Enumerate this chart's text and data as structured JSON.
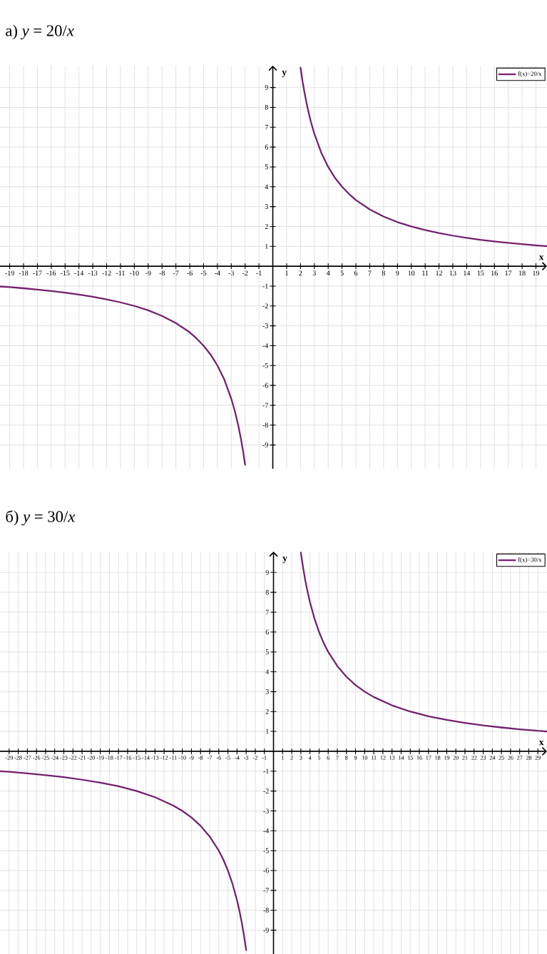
{
  "chart_data": [
    {
      "type": "line",
      "title": "а) *y* = 20/*x*",
      "xlabel": "x",
      "ylabel": "y",
      "xlim": [
        -19.7,
        19.8
      ],
      "ylim": [
        -10.2,
        10.1
      ],
      "xticks": [
        -19,
        -18,
        -17,
        -16,
        -15,
        -14,
        -13,
        -12,
        -11,
        -10,
        -9,
        -8,
        -7,
        -6,
        -5,
        -4,
        -3,
        -2,
        -1,
        1,
        2,
        3,
        4,
        5,
        6,
        7,
        8,
        9,
        10,
        11,
        12,
        13,
        14,
        15,
        16,
        17,
        18,
        19
      ],
      "yticks": [
        -9,
        -8,
        -7,
        -6,
        -5,
        -4,
        -3,
        -2,
        -1,
        1,
        2,
        3,
        4,
        5,
        6,
        7,
        8,
        9
      ],
      "grid": true,
      "legend": "top right",
      "series": [
        {
          "name": "f(x)=20/x",
          "color": "#74206f",
          "x": [
            -19.7,
            -19,
            -18,
            -17,
            -16,
            -15,
            -14,
            -13,
            -12,
            -11,
            -10,
            -9,
            -8,
            -7,
            -6,
            -5.5,
            -5,
            -4.5,
            -4,
            -3.5,
            -3,
            -2.75,
            -2.5,
            -2.3,
            -2.15,
            -2,
            0,
            2,
            2.15,
            2.3,
            2.5,
            2.75,
            3,
            3.5,
            4,
            4.5,
            5,
            5.5,
            6,
            7,
            8,
            9,
            10,
            11,
            12,
            13,
            14,
            15,
            16,
            17,
            18,
            19,
            19.8
          ],
          "values": [
            -1.02,
            -1.05,
            -1.11,
            -1.18,
            -1.25,
            -1.33,
            -1.43,
            -1.54,
            -1.67,
            -1.82,
            -2,
            -2.22,
            -2.5,
            -2.86,
            -3.33,
            -3.64,
            -4,
            -4.44,
            -5,
            -5.71,
            -6.67,
            -7.27,
            -8,
            -8.7,
            -9.3,
            -10,
            null,
            10,
            9.3,
            8.7,
            8,
            7.27,
            6.67,
            5.71,
            5,
            4.44,
            4,
            3.64,
            3.33,
            2.86,
            2.5,
            2.22,
            2,
            1.82,
            1.67,
            1.54,
            1.43,
            1.33,
            1.25,
            1.18,
            1.11,
            1.05,
            1.01
          ]
        }
      ]
    },
    {
      "type": "line",
      "title": "б) *y* = 30/*x*",
      "xlabel": "x",
      "ylabel": "y",
      "xlim": [
        -30,
        30
      ],
      "ylim": [
        -10.2,
        10.05
      ],
      "xticks": [
        -29,
        -28,
        -27,
        -26,
        -25,
        -24,
        -23,
        -22,
        -21,
        -20,
        -19,
        -18,
        -17,
        -16,
        -15,
        -14,
        -13,
        -12,
        -11,
        -10,
        -9,
        -8,
        -7,
        -6,
        -5,
        -4,
        -3,
        -2,
        -1,
        1,
        2,
        3,
        4,
        5,
        6,
        7,
        8,
        9,
        10,
        11,
        12,
        13,
        14,
        15,
        16,
        17,
        18,
        19,
        20,
        21,
        22,
        23,
        24,
        25,
        26,
        27,
        28,
        29
      ],
      "yticks": [
        -9,
        -8,
        -7,
        -6,
        -5,
        -4,
        -3,
        -2,
        -1,
        1,
        2,
        3,
        4,
        5,
        6,
        7,
        8,
        9
      ],
      "grid": true,
      "legend": "top right",
      "series": [
        {
          "name": "f(x)=30/x",
          "color": "#74206f",
          "x": [
            -30,
            -29,
            -27,
            -25,
            -23,
            -21,
            -19,
            -17,
            -15,
            -13,
            -11,
            -10,
            -9,
            -8,
            -7,
            -6,
            -5.5,
            -5,
            -4.5,
            -4,
            -3.75,
            -3.5,
            -3.25,
            -3,
            0,
            3,
            3.25,
            3.5,
            3.75,
            4,
            4.5,
            5,
            5.5,
            6,
            7,
            8,
            9,
            10,
            11,
            13,
            15,
            17,
            19,
            21,
            23,
            25,
            27,
            29,
            30
          ],
          "values": [
            -1,
            -1.03,
            -1.11,
            -1.2,
            -1.3,
            -1.43,
            -1.58,
            -1.76,
            -2,
            -2.31,
            -2.73,
            -3,
            -3.33,
            -3.75,
            -4.29,
            -5,
            -5.45,
            -6,
            -6.67,
            -7.5,
            -8,
            -8.57,
            -9.23,
            -10,
            null,
            10,
            9.23,
            8.57,
            8,
            7.5,
            6.67,
            6,
            5.45,
            5,
            4.29,
            3.75,
            3.33,
            3,
            2.73,
            2.31,
            2,
            1.76,
            1.58,
            1.43,
            1.3,
            1.2,
            1.11,
            1.03,
            1
          ]
        }
      ]
    }
  ]
}
